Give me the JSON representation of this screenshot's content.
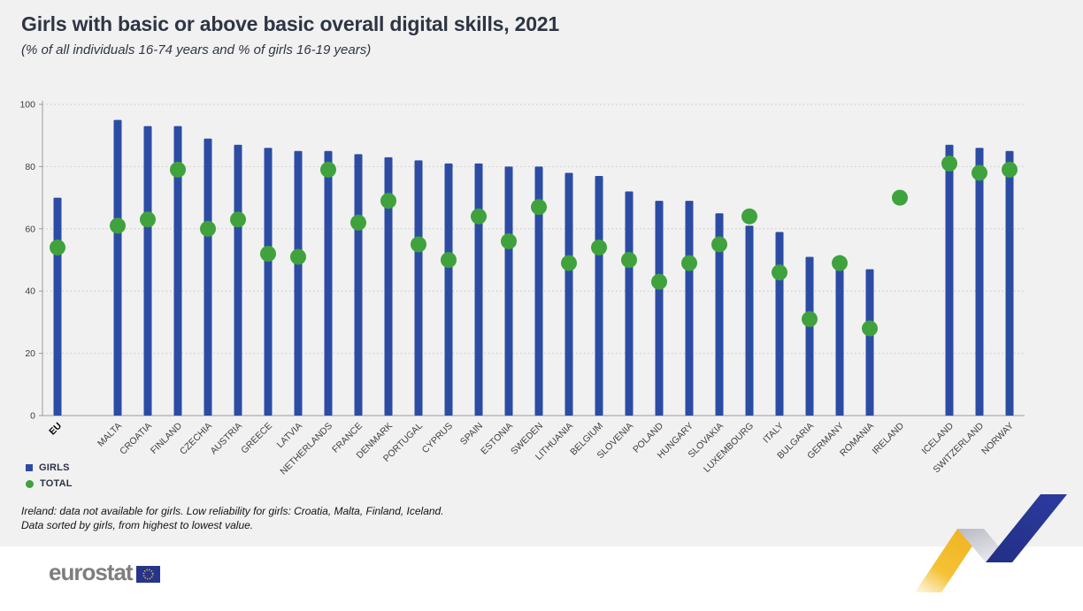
{
  "header": {
    "title": "Girls with basic or above basic overall digital skills, 2021",
    "subtitle": "(% of all individuals 16-74 years and % of girls 16-19 years)"
  },
  "footnotes": [
    "Ireland: data not available for girls. Low reliability for girls: Croatia, Malta, Finland, Iceland.",
    "Data sorted by girls, from highest to lowest value."
  ],
  "footer": {
    "logo_text": "eurostat"
  },
  "colors": {
    "bar_blue": "#2c4ca3",
    "dot_green": "#3fa23c",
    "background": "#f1f1f2",
    "footer_background": "#ffffff",
    "title_text": "#2e3543",
    "gridline": "#c8c8c8",
    "axis": "#9b9b9b",
    "axis_text": "#3d3d3d",
    "logo_gray": "#7e7e7e",
    "flag_blue": "#26348b",
    "flag_stars": "#ffcc00",
    "zigzag_yellow": "#f5c235",
    "zigzag_gray": "#c4c4cc",
    "zigzag_blue": "#2b3a9c"
  },
  "chart_data": {
    "type": "bar",
    "title": "Girls with basic or above basic overall digital skills, 2021",
    "subtitle": "(% of all individuals 16-74 years and % of girls 16-19 years)",
    "xlabel": "",
    "ylabel": "",
    "ylim": [
      0,
      100
    ],
    "yticks": [
      0,
      20,
      40,
      60,
      80,
      100
    ],
    "grid": true,
    "legend_position": "bottom-left",
    "categories": [
      "EU",
      "MALTA",
      "CROATIA",
      "FINLAND",
      "CZECHIA",
      "AUSTRIA",
      "GREECE",
      "LATVIA",
      "NETHERLANDS",
      "FRANCE",
      "DENMARK",
      "PORTUGAL",
      "CYPRUS",
      "SPAIN",
      "ESTONIA",
      "SWEDEN",
      "LITHUANIA",
      "BELGIUM",
      "SLOVENIA",
      "POLAND",
      "HUNGARY",
      "SLOVAKIA",
      "LUXEMBOURG",
      "ITALY",
      "BULGARIA",
      "GERMANY",
      "ROMANIA",
      "IRELAND",
      "ICELAND",
      "SWITZERLAND",
      "NORWAY"
    ],
    "series": [
      {
        "name": "GIRLS",
        "type": "bar",
        "color": "#2c4ca3",
        "values": [
          70,
          95,
          93,
          93,
          89,
          87,
          86,
          85,
          85,
          84,
          83,
          82,
          81,
          81,
          80,
          80,
          78,
          77,
          72,
          69,
          69,
          65,
          61,
          59,
          51,
          49,
          47,
          null,
          87,
          86,
          85
        ]
      },
      {
        "name": "TOTAL",
        "type": "scatter",
        "color": "#3fa23c",
        "values": [
          54,
          61,
          63,
          79,
          60,
          63,
          52,
          51,
          79,
          62,
          69,
          55,
          50,
          64,
          56,
          67,
          49,
          54,
          50,
          43,
          49,
          55,
          64,
          46,
          31,
          49,
          28,
          70,
          81,
          78,
          79
        ]
      }
    ]
  }
}
